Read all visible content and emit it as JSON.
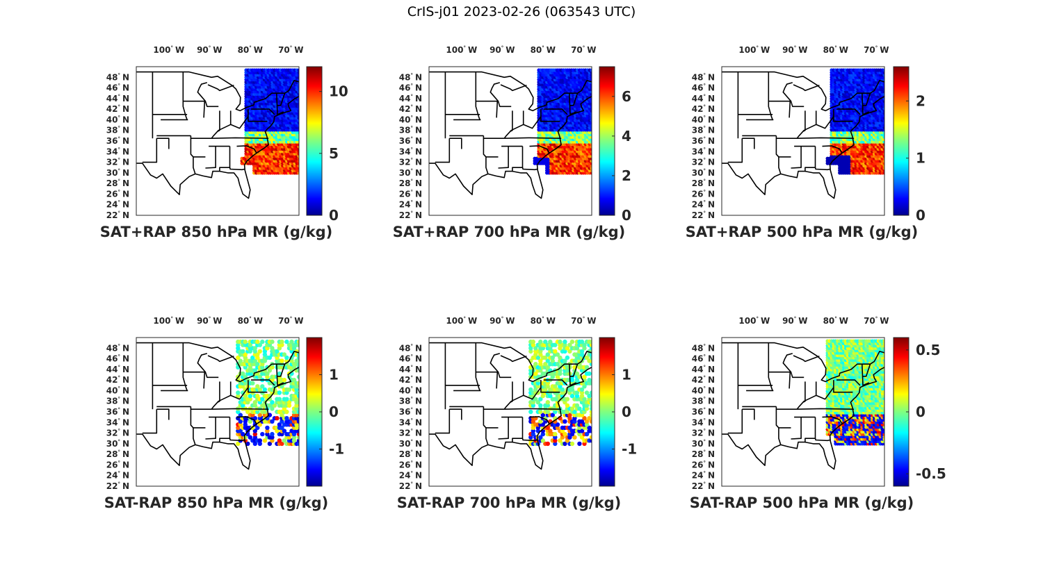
{
  "figure": {
    "title": "CrIS-j01 2023-02-26 (063543 UTC)"
  },
  "map_extent": {
    "lon": [
      -108,
      -68
    ],
    "lat": [
      22,
      50
    ]
  },
  "lon_ticks": [
    {
      "value": -100,
      "label": "100",
      "suffix": "W"
    },
    {
      "value": -90,
      "label": "90",
      "suffix": "W"
    },
    {
      "value": -80,
      "label": "80",
      "suffix": "W"
    },
    {
      "value": -70,
      "label": "70",
      "suffix": "W"
    }
  ],
  "lat_ticks": [
    {
      "value": 48,
      "label": "48",
      "suffix": "N"
    },
    {
      "value": 46,
      "label": "46",
      "suffix": "N"
    },
    {
      "value": 44,
      "label": "44",
      "suffix": "N"
    },
    {
      "value": 42,
      "label": "42",
      "suffix": "N"
    },
    {
      "value": 40,
      "label": "40",
      "suffix": "N"
    },
    {
      "value": 38,
      "label": "38",
      "suffix": "N"
    },
    {
      "value": 36,
      "label": "36",
      "suffix": "N"
    },
    {
      "value": 34,
      "label": "34",
      "suffix": "N"
    },
    {
      "value": 32,
      "label": "32",
      "suffix": "N"
    },
    {
      "value": 30,
      "label": "30",
      "suffix": "N"
    },
    {
      "value": 28,
      "label": "28",
      "suffix": "N"
    },
    {
      "value": 26,
      "label": "26",
      "suffix": "N"
    },
    {
      "value": 24,
      "label": "24",
      "suffix": "N"
    },
    {
      "value": 22,
      "label": "22",
      "suffix": "N"
    }
  ],
  "colormap": "jet",
  "panels": [
    {
      "id": "sum-850",
      "title": "SAT+RAP 850 hPa MR (g/kg)",
      "clim": [
        0,
        12
      ],
      "cbar_ticks": [
        {
          "value": 0,
          "label": "0"
        },
        {
          "value": 5,
          "label": "5"
        },
        {
          "value": 10,
          "label": "10"
        }
      ],
      "kind": "sum",
      "level": 850
    },
    {
      "id": "sum-700",
      "title": "SAT+RAP 700 hPa MR (g/kg)",
      "clim": [
        0,
        7.5
      ],
      "cbar_ticks": [
        {
          "value": 0,
          "label": "0"
        },
        {
          "value": 2,
          "label": "2"
        },
        {
          "value": 4,
          "label": "4"
        },
        {
          "value": 6,
          "label": "6"
        }
      ],
      "kind": "sum",
      "level": 700
    },
    {
      "id": "sum-500",
      "title": "SAT+RAP 500 hPa MR (g/kg)",
      "clim": [
        0,
        2.6
      ],
      "cbar_ticks": [
        {
          "value": 0,
          "label": "0"
        },
        {
          "value": 1,
          "label": "1"
        },
        {
          "value": 2,
          "label": "2"
        }
      ],
      "kind": "sum",
      "level": 500
    },
    {
      "id": "diff-850",
      "title": "SAT-RAP 850 hPa MR (g/kg)",
      "clim": [
        -2,
        2
      ],
      "cbar_ticks": [
        {
          "value": -1,
          "label": "-1"
        },
        {
          "value": 0,
          "label": "0"
        },
        {
          "value": 1,
          "label": "1"
        }
      ],
      "kind": "diff",
      "level": 850
    },
    {
      "id": "diff-700",
      "title": "SAT-RAP 700 hPa MR (g/kg)",
      "clim": [
        -2,
        2
      ],
      "cbar_ticks": [
        {
          "value": -1,
          "label": "-1"
        },
        {
          "value": 0,
          "label": "0"
        },
        {
          "value": 1,
          "label": "1"
        }
      ],
      "kind": "diff",
      "level": 700
    },
    {
      "id": "diff-500",
      "title": "SAT-RAP 500 hPa MR (g/kg)",
      "clim": [
        -0.6,
        0.6
      ],
      "cbar_ticks": [
        {
          "value": -0.5,
          "label": "-0.5"
        },
        {
          "value": 0,
          "label": "0"
        },
        {
          "value": 0.5,
          "label": "0.5"
        }
      ],
      "kind": "diff",
      "level": 500
    }
  ]
}
